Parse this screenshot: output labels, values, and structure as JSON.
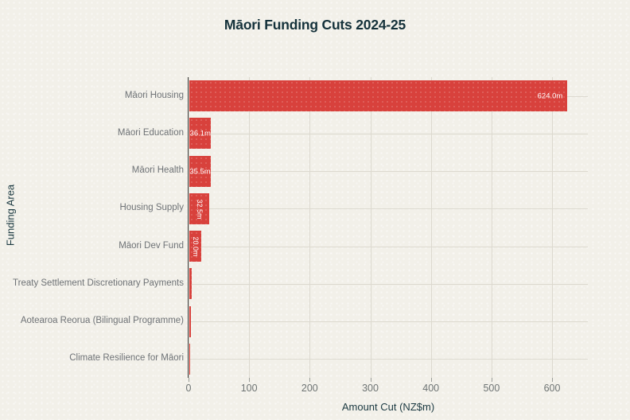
{
  "chart_data": {
    "type": "bar",
    "orientation": "horizontal",
    "title": "Māori Funding Cuts 2024-25",
    "xlabel": "Amount Cut (NZ$m)",
    "ylabel": "Funding Area",
    "xlim": [
      0,
      659
    ],
    "xticks": [
      0,
      100,
      200,
      300,
      400,
      500,
      600
    ],
    "grid": true,
    "legend": "none",
    "categories": [
      "Māori Housing",
      "Māori Education",
      "Māori Health",
      "Housing Supply",
      "Māori Dev Fund",
      "Treaty Settlement Discretionary Payments",
      "Aotearoa Reorua (Bilingual Programme)",
      "Climate Resilience for Māori"
    ],
    "values": [
      624.0,
      36.1,
      35.5,
      32.5,
      20.0,
      4.0,
      3.0,
      1.2
    ],
    "bar_labels": [
      "624.0m",
      "36.1m",
      "35.5m",
      "32.5m",
      "20.0m",
      "",
      "",
      ""
    ],
    "bar_label_styles": [
      "inside-right",
      "center",
      "center",
      "vertical",
      "vertical",
      "none",
      "none",
      "none"
    ]
  },
  "colors": {
    "background": "#f2f0e9",
    "bar": "#d8413c",
    "bar_label_text": "#ffffff",
    "title_text": "#14313a",
    "axis_title_text": "#1c3a42",
    "category_label_text": "#6e7276",
    "tick_label_text": "#6e7474",
    "gridline": "#dcd9cf",
    "axis_line": "#3f4040",
    "tick_mark": "#9a9d98"
  }
}
